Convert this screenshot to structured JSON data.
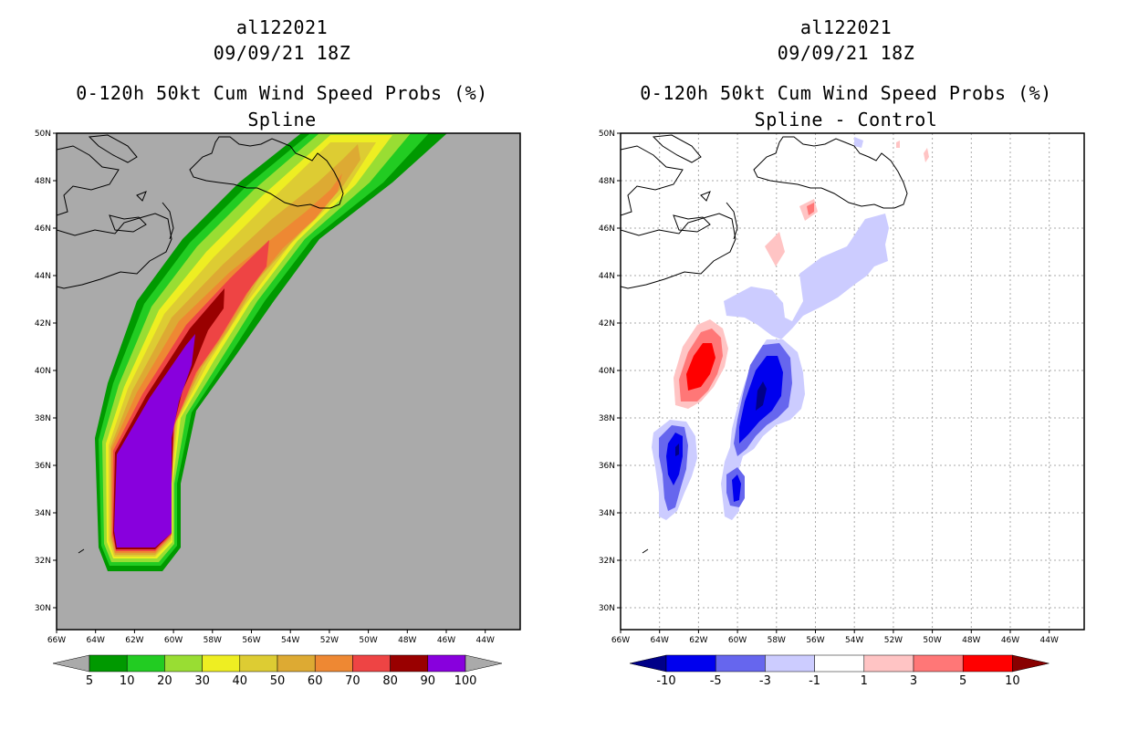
{
  "panels": [
    {
      "storm_id": "al122021",
      "datetime": "09/09/21 18Z",
      "product": "0-120h 50kt Cum Wind Speed Probs (%)",
      "subtitle": "Spline"
    },
    {
      "storm_id": "al122021",
      "datetime": "09/09/21 18Z",
      "product": "0-120h 50kt Cum Wind Speed Probs (%)",
      "subtitle": "Spline - Control"
    }
  ],
  "axes": {
    "lat_labels": [
      "50N",
      "48N",
      "46N",
      "44N",
      "42N",
      "40N",
      "38N",
      "36N",
      "34N",
      "32N",
      "30N"
    ],
    "lon_labels": [
      "66W",
      "64W",
      "62W",
      "60W",
      "58W",
      "56W",
      "54W",
      "52W",
      "50W",
      "48W",
      "46W",
      "44W"
    ]
  },
  "legend_left": {
    "labels": [
      "5",
      "10",
      "20",
      "30",
      "40",
      "50",
      "60",
      "70",
      "80",
      "90",
      "100"
    ],
    "colors": [
      "#009900",
      "#22cc22",
      "#99dd33",
      "#eeee22",
      "#ddcc33",
      "#ddaa33",
      "#ee8833",
      "#ee4444",
      "#990000",
      "#8800dd"
    ],
    "end_color": "#aaaaaa"
  },
  "legend_right": {
    "labels": [
      "-10",
      "-5",
      "-3",
      "-1",
      "1",
      "3",
      "5",
      "10"
    ],
    "colors": [
      "#0000ee",
      "#6666ee",
      "#ccccff",
      "#ffffff",
      "#ffc4c4",
      "#ff7777",
      "#ff0000"
    ],
    "end_low_color": "#000088",
    "end_high_color": "#880000"
  },
  "colors": {
    "left_background": "#aaaaaa",
    "right_background": "#ffffff",
    "coastline": "#000000",
    "grid": "#aaaaaa"
  }
}
